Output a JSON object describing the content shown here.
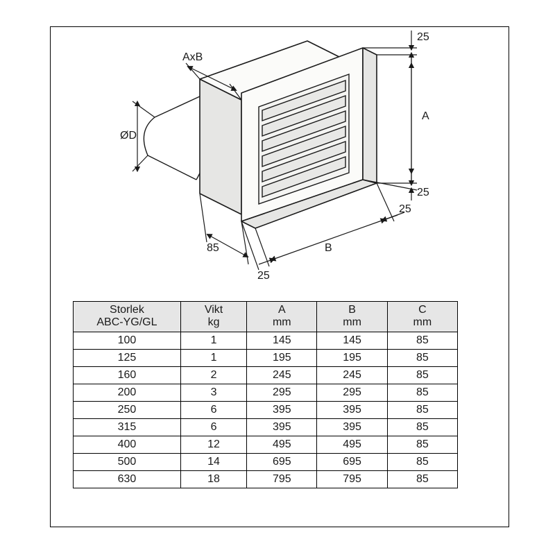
{
  "diagram": {
    "labels": {
      "axb": "AxB",
      "od": "ØD",
      "depth85": "85",
      "flange25_top": "25",
      "flange25_bottomV": "25",
      "flange25_rightH": "25",
      "flange25_depth": "25",
      "A": "A",
      "B": "B"
    },
    "colors": {
      "stroke": "#1a1a1a",
      "fill_face": "#fbfbf9",
      "fill_shade": "#e6e6e4"
    }
  },
  "table": {
    "columns": [
      {
        "line1": "Storlek",
        "line2": "ABC-YG/GL"
      },
      {
        "line1": "Vikt",
        "line2": "kg"
      },
      {
        "line1": "A",
        "line2": "mm"
      },
      {
        "line1": "B",
        "line2": "mm"
      },
      {
        "line1": "C",
        "line2": "mm"
      }
    ],
    "rows": [
      [
        "100",
        "1",
        "145",
        "145",
        "85"
      ],
      [
        "125",
        "1",
        "195",
        "195",
        "85"
      ],
      [
        "160",
        "2",
        "245",
        "245",
        "85"
      ],
      [
        "200",
        "3",
        "295",
        "295",
        "85"
      ],
      [
        "250",
        "6",
        "395",
        "395",
        "85"
      ],
      [
        "315",
        "6",
        "395",
        "395",
        "85"
      ],
      [
        "400",
        "12",
        "495",
        "495",
        "85"
      ],
      [
        "500",
        "14",
        "695",
        "695",
        "85"
      ],
      [
        "630",
        "18",
        "795",
        "795",
        "85"
      ]
    ],
    "header_bg": "#e6e6e6",
    "border_color": "#000000",
    "fontsize": 16
  }
}
